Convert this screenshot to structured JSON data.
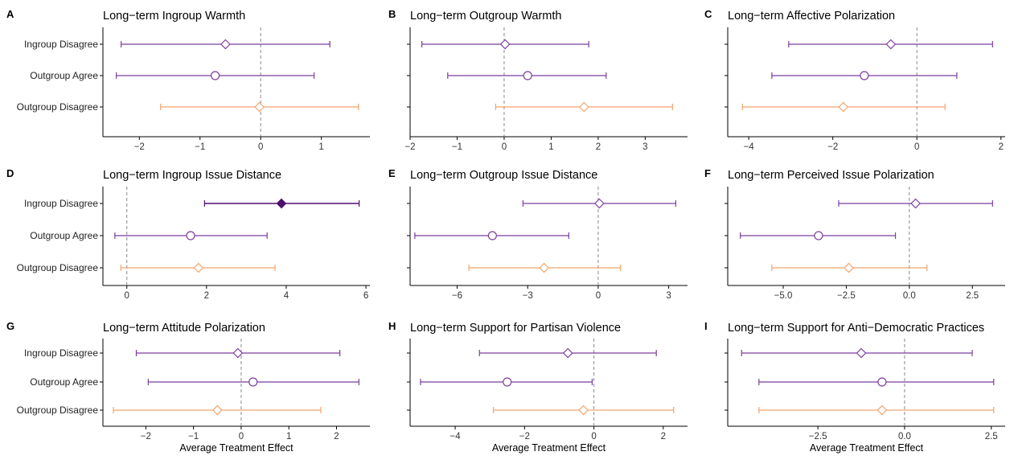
{
  "colors": {
    "purple": "#7b3f9e",
    "purple_dark": "#4e0f6e",
    "orange": "#f3a46c",
    "zero_line": "#8a8a8a"
  },
  "categories": [
    "Ingroup Disagree",
    "Outgroup Agree",
    "Outgroup Disagree"
  ],
  "x_axis_label": "Average Treatment Effect",
  "chart_data": [
    {
      "type": "scatter",
      "letter": "A",
      "title": "Long−term Ingroup Warmth",
      "xlim": [
        -2.6,
        1.8
      ],
      "xticks": [
        -2,
        -1,
        0,
        1
      ],
      "xlabel": "",
      "points": [
        {
          "category": "Ingroup Disagree",
          "estimate": -0.58,
          "lower": -2.3,
          "upper": 1.14,
          "shape": "diamond",
          "filled": false,
          "color": "#7b3f9e"
        },
        {
          "category": "Outgroup Agree",
          "estimate": -0.75,
          "lower": -2.38,
          "upper": 0.88,
          "shape": "circle",
          "filled": false,
          "color": "#7b3f9e"
        },
        {
          "category": "Outgroup Disagree",
          "estimate": -0.02,
          "lower": -1.65,
          "upper": 1.61,
          "shape": "diamond",
          "filled": false,
          "color": "#f3a46c"
        }
      ]
    },
    {
      "type": "scatter",
      "letter": "B",
      "title": "Long−term Outgroup Warmth",
      "xlim": [
        -2.0,
        3.9
      ],
      "xticks": [
        -2,
        -1,
        0,
        1,
        2,
        3
      ],
      "xlabel": "",
      "points": [
        {
          "category": "Ingroup Disagree",
          "estimate": 0.02,
          "lower": -1.75,
          "upper": 1.8,
          "shape": "diamond",
          "filled": false,
          "color": "#7b3f9e"
        },
        {
          "category": "Outgroup Agree",
          "estimate": 0.5,
          "lower": -1.2,
          "upper": 2.17,
          "shape": "circle",
          "filled": false,
          "color": "#7b3f9e"
        },
        {
          "category": "Outgroup Disagree",
          "estimate": 1.7,
          "lower": -0.18,
          "upper": 3.58,
          "shape": "diamond",
          "filled": false,
          "color": "#f3a46c"
        }
      ]
    },
    {
      "type": "scatter",
      "letter": "C",
      "title": "Long−term Affective Polarization",
      "xlim": [
        -4.5,
        2.1
      ],
      "xticks": [
        -4,
        -2,
        0,
        2
      ],
      "xlabel": "",
      "points": [
        {
          "category": "Ingroup Disagree",
          "estimate": -0.62,
          "lower": -3.05,
          "upper": 1.8,
          "shape": "diamond",
          "filled": false,
          "color": "#7b3f9e"
        },
        {
          "category": "Outgroup Agree",
          "estimate": -1.25,
          "lower": -3.45,
          "upper": 0.95,
          "shape": "circle",
          "filled": false,
          "color": "#7b3f9e"
        },
        {
          "category": "Outgroup Disagree",
          "estimate": -1.75,
          "lower": -4.15,
          "upper": 0.67,
          "shape": "diamond",
          "filled": false,
          "color": "#f3a46c"
        }
      ]
    },
    {
      "type": "scatter",
      "letter": "D",
      "title": "Long−term Ingroup Issue Distance",
      "xlim": [
        -0.6,
        6.1
      ],
      "xticks": [
        0,
        2,
        4,
        6
      ],
      "xlabel": "",
      "points": [
        {
          "category": "Ingroup Disagree",
          "estimate": 3.88,
          "lower": 1.95,
          "upper": 5.83,
          "shape": "diamond",
          "filled": true,
          "color": "#4e0f6e"
        },
        {
          "category": "Outgroup Agree",
          "estimate": 1.6,
          "lower": -0.3,
          "upper": 3.52,
          "shape": "circle",
          "filled": false,
          "color": "#7b3f9e"
        },
        {
          "category": "Outgroup Disagree",
          "estimate": 1.8,
          "lower": -0.15,
          "upper": 3.72,
          "shape": "diamond",
          "filled": false,
          "color": "#f3a46c"
        }
      ]
    },
    {
      "type": "scatter",
      "letter": "E",
      "title": "Long−term Outgroup Issue Distance",
      "xlim": [
        -8.0,
        3.8
      ],
      "xticks": [
        -6,
        -3,
        0,
        3
      ],
      "xlabel": "",
      "points": [
        {
          "category": "Ingroup Disagree",
          "estimate": 0.05,
          "lower": -3.2,
          "upper": 3.3,
          "shape": "diamond",
          "filled": false,
          "color": "#7b3f9e"
        },
        {
          "category": "Outgroup Agree",
          "estimate": -4.5,
          "lower": -7.8,
          "upper": -1.25,
          "shape": "circle",
          "filled": false,
          "color": "#7b3f9e"
        },
        {
          "category": "Outgroup Disagree",
          "estimate": -2.3,
          "lower": -5.5,
          "upper": 0.95,
          "shape": "diamond",
          "filled": false,
          "color": "#f3a46c"
        }
      ]
    },
    {
      "type": "scatter",
      "letter": "F",
      "title": "Long−term Perceived Issue Polarization",
      "xlim": [
        -7.2,
        3.8
      ],
      "xticks": [
        -5.0,
        -2.5,
        0.0,
        2.5
      ],
      "xtick_labels": [
        "−5.0",
        "−2.5",
        "0.0",
        "2.5"
      ],
      "xlabel": "",
      "points": [
        {
          "category": "Ingroup Disagree",
          "estimate": 0.25,
          "lower": -2.8,
          "upper": 3.3,
          "shape": "diamond",
          "filled": false,
          "color": "#7b3f9e"
        },
        {
          "category": "Outgroup Agree",
          "estimate": -3.6,
          "lower": -6.7,
          "upper": -0.55,
          "shape": "circle",
          "filled": false,
          "color": "#7b3f9e"
        },
        {
          "category": "Outgroup Disagree",
          "estimate": -2.4,
          "lower": -5.45,
          "upper": 0.7,
          "shape": "diamond",
          "filled": false,
          "color": "#f3a46c"
        }
      ]
    },
    {
      "type": "scatter",
      "letter": "G",
      "title": "Long−term Attitude Polarization",
      "xlim": [
        -2.9,
        2.7
      ],
      "xticks": [
        -2,
        -1,
        0,
        1,
        2
      ],
      "xlabel": "Average Treatment Effect",
      "points": [
        {
          "category": "Ingroup Disagree",
          "estimate": -0.07,
          "lower": -2.2,
          "upper": 2.07,
          "shape": "diamond",
          "filled": false,
          "color": "#7b3f9e"
        },
        {
          "category": "Outgroup Agree",
          "estimate": 0.25,
          "lower": -1.95,
          "upper": 2.47,
          "shape": "circle",
          "filled": false,
          "color": "#7b3f9e"
        },
        {
          "category": "Outgroup Disagree",
          "estimate": -0.5,
          "lower": -2.68,
          "upper": 1.67,
          "shape": "diamond",
          "filled": false,
          "color": "#f3a46c"
        }
      ]
    },
    {
      "type": "scatter",
      "letter": "H",
      "title": "Long−term Support for Partisan Violence",
      "xlim": [
        -5.3,
        2.7
      ],
      "xticks": [
        -4,
        -2,
        0,
        2
      ],
      "xlabel": "Average Treatment Effect",
      "points": [
        {
          "category": "Ingroup Disagree",
          "estimate": -0.75,
          "lower": -3.3,
          "upper": 1.8,
          "shape": "diamond",
          "filled": false,
          "color": "#7b3f9e"
        },
        {
          "category": "Outgroup Agree",
          "estimate": -2.5,
          "lower": -5.0,
          "upper": -0.05,
          "shape": "circle",
          "filled": false,
          "color": "#7b3f9e"
        },
        {
          "category": "Outgroup Disagree",
          "estimate": -0.3,
          "lower": -2.9,
          "upper": 2.3,
          "shape": "diamond",
          "filled": false,
          "color": "#f3a46c"
        }
      ]
    },
    {
      "type": "scatter",
      "letter": "I",
      "title": "Long−term Support for Anti−Democratic Practices",
      "xlim": [
        -5.1,
        2.9
      ],
      "xticks": [
        -2.5,
        0.0,
        2.5
      ],
      "xtick_labels": [
        "−2.5",
        "0.0",
        "2.5"
      ],
      "xlabel": "Average Treatment Effect",
      "points": [
        {
          "category": "Ingroup Disagree",
          "estimate": -1.25,
          "lower": -4.7,
          "upper": 1.95,
          "shape": "diamond",
          "filled": false,
          "color": "#7b3f9e"
        },
        {
          "category": "Outgroup Agree",
          "estimate": -0.65,
          "lower": -4.2,
          "upper": 2.57,
          "shape": "circle",
          "filled": false,
          "color": "#7b3f9e"
        },
        {
          "category": "Outgroup Disagree",
          "estimate": -0.65,
          "lower": -4.2,
          "upper": 2.57,
          "shape": "diamond",
          "filled": false,
          "color": "#f3a46c"
        }
      ]
    }
  ]
}
